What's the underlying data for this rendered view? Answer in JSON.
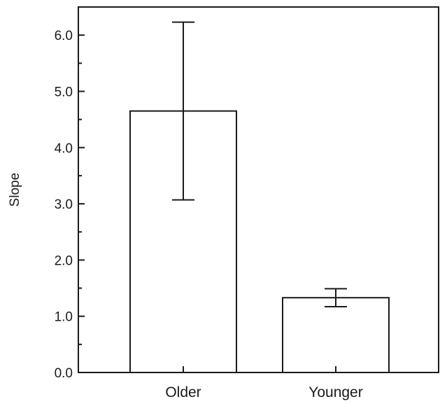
{
  "chart_data": {
    "type": "bar",
    "title": "",
    "xlabel": "",
    "ylabel": "Slope",
    "categories": [
      "Older",
      "Younger"
    ],
    "values": [
      4.65,
      1.33
    ],
    "error_bars": [
      {
        "lower": 3.07,
        "upper": 6.23
      },
      {
        "lower": 1.17,
        "upper": 1.49
      }
    ],
    "ylim": [
      0,
      6.5
    ],
    "yticks": [
      0.0,
      1.0,
      2.0,
      3.0,
      4.0,
      5.0,
      6.0
    ],
    "ytick_labels": [
      "0.0",
      "1.0",
      "2.0",
      "3.0",
      "4.0",
      "5.0",
      "6.0"
    ],
    "grid": false,
    "legend": "none",
    "colors": {
      "bar_fill": "#ffffff",
      "stroke": "#1a1a1a"
    }
  }
}
